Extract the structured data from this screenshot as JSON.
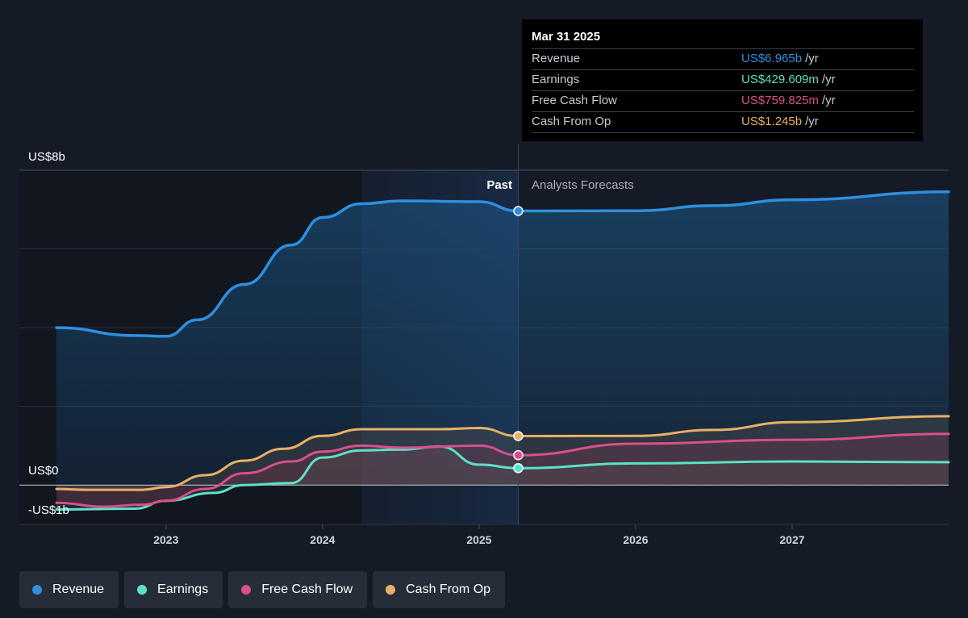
{
  "chart_data": {
    "type": "line",
    "y_labels": {
      "top": "US$8b",
      "zero": "US$0",
      "bottom": "-US$1b"
    },
    "ylim": [
      -1,
      8
    ],
    "xlim": [
      2022.3,
      2028.0
    ],
    "x_ticks": [
      {
        "label": "2023",
        "value": 2023
      },
      {
        "label": "2024",
        "value": 2024
      },
      {
        "label": "2025",
        "value": 2025
      },
      {
        "label": "2026",
        "value": 2026
      },
      {
        "label": "2027",
        "value": 2027
      }
    ],
    "grid_values": [
      8,
      6,
      4,
      2,
      0,
      -1
    ],
    "past_label": "Past",
    "forecast_label": "Analysts Forecasts",
    "divider_x": 2025.25,
    "highlight_range": [
      2024.25,
      2025.25
    ],
    "series": [
      {
        "name": "Revenue",
        "key": "revenue",
        "color": "#2d8fe0",
        "points": [
          [
            2022.3,
            4.0
          ],
          [
            2022.8,
            3.8
          ],
          [
            2023.0,
            3.78
          ],
          [
            2023.2,
            4.2
          ],
          [
            2023.5,
            5.1
          ],
          [
            2023.8,
            6.1
          ],
          [
            2024.0,
            6.8
          ],
          [
            2024.25,
            7.15
          ],
          [
            2024.5,
            7.22
          ],
          [
            2025.0,
            7.2
          ],
          [
            2025.25,
            6.965
          ],
          [
            2026.0,
            6.97
          ],
          [
            2026.5,
            7.1
          ],
          [
            2027.0,
            7.25
          ],
          [
            2028.0,
            7.45
          ]
        ]
      },
      {
        "name": "Earnings",
        "key": "earnings",
        "color": "#5ce0c8",
        "points": [
          [
            2022.3,
            -0.62
          ],
          [
            2022.8,
            -0.6
          ],
          [
            2023.0,
            -0.4
          ],
          [
            2023.3,
            -0.2
          ],
          [
            2023.5,
            0.0
          ],
          [
            2023.8,
            0.05
          ],
          [
            2024.0,
            0.7
          ],
          [
            2024.25,
            0.88
          ],
          [
            2024.5,
            0.9
          ],
          [
            2024.75,
            0.98
          ],
          [
            2025.0,
            0.52
          ],
          [
            2025.25,
            0.429609
          ],
          [
            2026.0,
            0.55
          ],
          [
            2027.0,
            0.6
          ],
          [
            2028.0,
            0.58
          ]
        ]
      },
      {
        "name": "Free Cash Flow",
        "key": "fcf",
        "color": "#d84f8c",
        "points": [
          [
            2022.3,
            -0.45
          ],
          [
            2022.6,
            -0.55
          ],
          [
            2022.85,
            -0.5
          ],
          [
            2023.0,
            -0.4
          ],
          [
            2023.25,
            -0.1
          ],
          [
            2023.5,
            0.3
          ],
          [
            2023.8,
            0.6
          ],
          [
            2024.0,
            0.85
          ],
          [
            2024.25,
            1.0
          ],
          [
            2024.5,
            0.95
          ],
          [
            2025.0,
            1.0
          ],
          [
            2025.25,
            0.759825
          ],
          [
            2026.0,
            1.05
          ],
          [
            2027.0,
            1.15
          ],
          [
            2028.0,
            1.3
          ]
        ]
      },
      {
        "name": "Cash From Op",
        "key": "cfo",
        "color": "#e7b066",
        "points": [
          [
            2022.3,
            -0.1
          ],
          [
            2022.5,
            -0.12
          ],
          [
            2022.85,
            -0.12
          ],
          [
            2023.0,
            -0.05
          ],
          [
            2023.25,
            0.25
          ],
          [
            2023.5,
            0.62
          ],
          [
            2023.75,
            0.92
          ],
          [
            2024.0,
            1.25
          ],
          [
            2024.25,
            1.42
          ],
          [
            2024.75,
            1.42
          ],
          [
            2025.0,
            1.45
          ],
          [
            2025.25,
            1.245
          ],
          [
            2026.0,
            1.25
          ],
          [
            2026.5,
            1.4
          ],
          [
            2027.0,
            1.6
          ],
          [
            2028.0,
            1.75
          ]
        ]
      }
    ]
  },
  "tooltip": {
    "date": "Mar 31 2025",
    "unit": "/yr",
    "rows": [
      {
        "name": "Revenue",
        "value": "US$6.965b",
        "color": "#2d8fe0"
      },
      {
        "name": "Earnings",
        "value": "US$429.609m",
        "color": "#5ce0c8"
      },
      {
        "name": "Free Cash Flow",
        "value": "US$759.825m",
        "color": "#d84f8c"
      },
      {
        "name": "Cash From Op",
        "value": "US$1.245b",
        "color": "#e7b066"
      }
    ]
  },
  "legend": [
    {
      "label": "Revenue",
      "color": "#2d8fe0"
    },
    {
      "label": "Earnings",
      "color": "#5ce0c8"
    },
    {
      "label": "Free Cash Flow",
      "color": "#d84f8c"
    },
    {
      "label": "Cash From Op",
      "color": "#e7b066"
    }
  ]
}
